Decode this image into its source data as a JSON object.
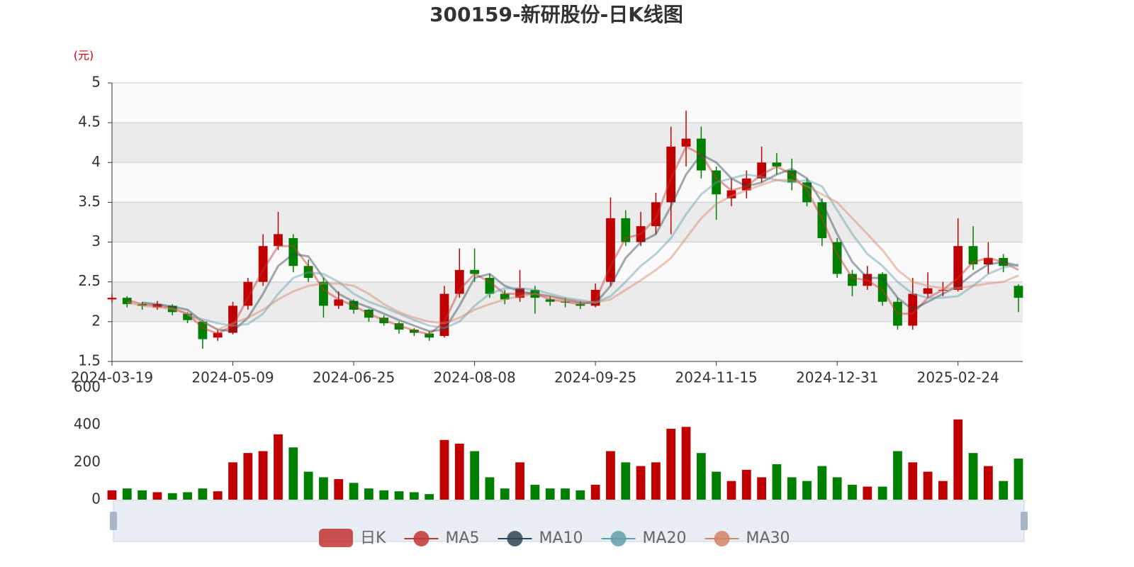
{
  "chart_data": {
    "type": "candlestick",
    "title": "300159-新研股份-日K线图",
    "y_unit": "(元)",
    "categories": [
      "2024-03-19",
      null,
      null,
      null,
      null,
      null,
      null,
      null,
      "2024-05-09",
      null,
      null,
      null,
      null,
      null,
      null,
      null,
      "2024-06-25",
      null,
      null,
      null,
      null,
      null,
      null,
      null,
      "2024-08-08",
      null,
      null,
      null,
      null,
      null,
      null,
      null,
      "2024-09-25",
      null,
      null,
      null,
      null,
      null,
      null,
      null,
      "2024-11-15",
      null,
      null,
      null,
      null,
      null,
      null,
      null,
      "2024-12-31",
      null,
      null,
      null,
      null,
      null,
      null,
      null,
      "2025-02-24",
      null,
      null,
      null,
      null
    ],
    "ylim": [
      1.5,
      5
    ],
    "yticks": [
      1.5,
      2,
      2.5,
      3,
      3.5,
      4,
      4.5,
      5
    ],
    "split_area": true,
    "series": [
      {
        "name": "日K",
        "type": "candlestick",
        "color": "#c23531",
        "up_color": "#c00000",
        "down_color": "#008000",
        "values": [
          [
            2.28,
            2.3,
            2.24,
            2.35
          ],
          [
            2.3,
            2.22,
            2.18,
            2.32
          ],
          [
            2.22,
            2.2,
            2.15,
            2.25
          ],
          [
            2.18,
            2.22,
            2.15,
            2.26
          ],
          [
            2.2,
            2.12,
            2.08,
            2.22
          ],
          [
            2.1,
            2.02,
            1.98,
            2.12
          ],
          [
            2.0,
            1.78,
            1.66,
            2.02
          ],
          [
            1.8,
            1.86,
            1.76,
            1.9
          ],
          [
            1.86,
            2.2,
            1.84,
            2.25
          ],
          [
            2.2,
            2.5,
            2.15,
            2.55
          ],
          [
            2.5,
            2.95,
            2.45,
            3.1
          ],
          [
            2.95,
            3.1,
            2.9,
            3.38
          ],
          [
            3.05,
            2.7,
            2.62,
            3.1
          ],
          [
            2.7,
            2.55,
            2.5,
            2.78
          ],
          [
            2.5,
            2.2,
            2.05,
            2.55
          ],
          [
            2.2,
            2.28,
            2.16,
            2.38
          ],
          [
            2.26,
            2.15,
            2.1,
            2.28
          ],
          [
            2.15,
            2.05,
            2.0,
            2.16
          ],
          [
            2.05,
            1.98,
            1.95,
            2.08
          ],
          [
            1.98,
            1.9,
            1.85,
            2.0
          ],
          [
            1.9,
            1.86,
            1.82,
            1.92
          ],
          [
            1.85,
            1.8,
            1.76,
            1.88
          ],
          [
            1.82,
            2.35,
            1.8,
            2.45
          ],
          [
            2.35,
            2.65,
            2.3,
            2.92
          ],
          [
            2.65,
            2.6,
            2.5,
            2.92
          ],
          [
            2.55,
            2.35,
            2.3,
            2.6
          ],
          [
            2.35,
            2.28,
            2.22,
            2.4
          ],
          [
            2.3,
            2.42,
            2.25,
            2.65
          ],
          [
            2.4,
            2.3,
            2.1,
            2.45
          ],
          [
            2.28,
            2.25,
            2.2,
            2.32
          ],
          [
            2.25,
            2.24,
            2.18,
            2.3
          ],
          [
            2.22,
            2.2,
            2.16,
            2.26
          ],
          [
            2.2,
            2.4,
            2.18,
            2.48
          ],
          [
            2.5,
            3.3,
            2.45,
            3.56
          ],
          [
            3.3,
            3.0,
            2.95,
            3.4
          ],
          [
            3.0,
            3.2,
            2.95,
            3.38
          ],
          [
            3.2,
            3.5,
            3.1,
            3.62
          ],
          [
            3.5,
            4.2,
            3.1,
            4.45
          ],
          [
            4.2,
            4.3,
            3.95,
            4.65
          ],
          [
            4.3,
            3.9,
            3.8,
            4.45
          ],
          [
            3.9,
            3.6,
            3.28,
            3.95
          ],
          [
            3.55,
            3.65,
            3.45,
            3.8
          ],
          [
            3.65,
            3.8,
            3.55,
            3.9
          ],
          [
            3.8,
            4.0,
            3.75,
            4.2
          ],
          [
            4.0,
            3.95,
            3.85,
            4.12
          ],
          [
            3.9,
            3.75,
            3.65,
            4.05
          ],
          [
            3.75,
            3.5,
            3.45,
            3.8
          ],
          [
            3.5,
            3.05,
            2.95,
            3.55
          ],
          [
            3.0,
            2.6,
            2.55,
            3.05
          ],
          [
            2.6,
            2.45,
            2.32,
            2.65
          ],
          [
            2.45,
            2.6,
            2.4,
            2.7
          ],
          [
            2.6,
            2.25,
            2.2,
            2.62
          ],
          [
            2.25,
            1.95,
            1.9,
            2.3
          ],
          [
            1.95,
            2.35,
            1.9,
            2.55
          ],
          [
            2.35,
            2.42,
            2.3,
            2.62
          ],
          [
            2.4,
            2.4,
            2.32,
            2.5
          ],
          [
            2.4,
            2.95,
            2.38,
            3.3
          ],
          [
            2.95,
            2.72,
            2.65,
            3.2
          ],
          [
            2.72,
            2.8,
            2.6,
            3.0
          ],
          [
            2.8,
            2.7,
            2.62,
            2.85
          ],
          [
            2.45,
            2.3,
            2.12,
            2.47
          ]
        ]
      },
      {
        "name": "MA5",
        "type": "line",
        "color": "#c23531",
        "values": [
          null,
          2.27,
          2.22,
          2.2,
          2.17,
          2.1,
          1.92,
          1.85,
          1.95,
          2.3,
          2.65,
          2.95,
          2.95,
          2.7,
          2.4,
          2.28,
          2.2,
          2.1,
          2.02,
          1.95,
          1.89,
          1.84,
          2.0,
          2.4,
          2.6,
          2.5,
          2.35,
          2.35,
          2.35,
          2.28,
          2.25,
          2.22,
          2.26,
          2.7,
          3.05,
          3.1,
          3.3,
          3.8,
          4.2,
          4.1,
          3.8,
          3.65,
          3.7,
          3.85,
          3.95,
          3.85,
          3.65,
          3.3,
          2.85,
          2.55,
          2.52,
          2.4,
          2.1,
          2.1,
          2.3,
          2.4,
          2.55,
          2.75,
          2.8,
          2.75,
          2.65
        ]
      },
      {
        "name": "MA10",
        "type": "line",
        "color": "#2f4554",
        "values": [
          null,
          null,
          2.24,
          2.22,
          2.19,
          2.15,
          2.0,
          1.9,
          1.88,
          2.05,
          2.35,
          2.7,
          2.85,
          2.82,
          2.55,
          2.35,
          2.25,
          2.18,
          2.1,
          2.02,
          1.95,
          1.88,
          1.9,
          2.2,
          2.55,
          2.6,
          2.45,
          2.38,
          2.35,
          2.32,
          2.28,
          2.24,
          2.23,
          2.45,
          2.8,
          3.0,
          3.1,
          3.45,
          3.85,
          4.1,
          4.0,
          3.8,
          3.7,
          3.75,
          3.85,
          3.92,
          3.8,
          3.5,
          3.1,
          2.75,
          2.55,
          2.55,
          2.3,
          2.15,
          2.25,
          2.35,
          2.45,
          2.6,
          2.72,
          2.75,
          2.7
        ]
      },
      {
        "name": "MA20",
        "type": "line",
        "color": "#61a0a8",
        "values": [
          null,
          null,
          null,
          null,
          null,
          2.08,
          2.03,
          1.98,
          1.95,
          1.97,
          2.1,
          2.35,
          2.55,
          2.62,
          2.6,
          2.5,
          2.35,
          2.25,
          2.18,
          2.1,
          2.02,
          1.95,
          1.92,
          2.0,
          2.2,
          2.35,
          2.42,
          2.42,
          2.4,
          2.35,
          2.3,
          2.27,
          2.24,
          2.32,
          2.5,
          2.7,
          2.85,
          3.05,
          3.35,
          3.6,
          3.75,
          3.8,
          3.85,
          3.82,
          3.78,
          3.75,
          3.78,
          3.7,
          3.4,
          3.1,
          2.85,
          2.7,
          2.5,
          2.35,
          2.3,
          2.3,
          2.32,
          2.45,
          2.6,
          2.68,
          2.72
        ]
      },
      {
        "name": "MA30",
        "type": "line",
        "color": "#d48265",
        "values": [
          null,
          2.24,
          2.2,
          2.18,
          2.16,
          2.1,
          2.0,
          1.9,
          1.98,
          2.05,
          2.15,
          2.28,
          2.38,
          2.45,
          2.48,
          2.48,
          2.45,
          2.35,
          2.22,
          2.12,
          2.05,
          2.0,
          1.98,
          2.05,
          2.15,
          2.22,
          2.28,
          2.32,
          2.35,
          2.32,
          2.28,
          2.25,
          2.24,
          2.28,
          2.4,
          2.52,
          2.65,
          2.8,
          3.05,
          3.3,
          3.48,
          3.58,
          3.65,
          3.72,
          3.78,
          3.78,
          3.7,
          3.6,
          3.5,
          3.3,
          3.1,
          2.9,
          2.65,
          2.5,
          2.45,
          2.42,
          2.42,
          2.45,
          2.48,
          2.5,
          2.58
        ]
      }
    ],
    "volume": {
      "ylim": [
        0,
        600
      ],
      "yticks": [
        0,
        200,
        400,
        600
      ],
      "values": [
        50,
        60,
        50,
        40,
        35,
        40,
        60,
        45,
        200,
        250,
        260,
        350,
        280,
        150,
        120,
        110,
        90,
        60,
        50,
        45,
        40,
        30,
        320,
        300,
        260,
        120,
        60,
        200,
        80,
        60,
        60,
        50,
        80,
        260,
        200,
        180,
        200,
        380,
        390,
        250,
        150,
        100,
        160,
        120,
        190,
        120,
        100,
        180,
        120,
        80,
        70,
        70,
        260,
        200,
        150,
        100,
        430,
        250,
        180,
        100,
        220
      ]
    }
  }
}
